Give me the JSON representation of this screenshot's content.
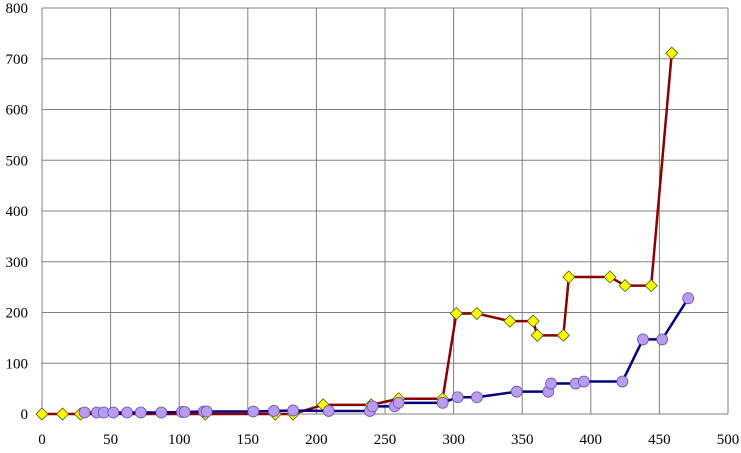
{
  "chart_data": {
    "type": "line",
    "title": "",
    "xlabel": "",
    "ylabel": "",
    "xlim": [
      0,
      500
    ],
    "ylim": [
      0,
      800
    ],
    "x_ticks": [
      0,
      50,
      100,
      150,
      200,
      250,
      300,
      350,
      400,
      450,
      500
    ],
    "y_ticks": [
      0,
      100,
      200,
      300,
      400,
      500,
      600,
      700,
      800
    ],
    "grid": true,
    "legend": "none",
    "series": [
      {
        "color": "#8B0000",
        "marker": "diamond",
        "marker_color": "#FFFF00",
        "points": [
          [
            0,
            0
          ],
          [
            15,
            0
          ],
          [
            28,
            0
          ],
          [
            119,
            0
          ],
          [
            170,
            0
          ],
          [
            183,
            0
          ],
          [
            205,
            18
          ],
          [
            240,
            18
          ],
          [
            260,
            30
          ],
          [
            292,
            30
          ],
          [
            302,
            198
          ],
          [
            317,
            198
          ],
          [
            341,
            183
          ],
          [
            358,
            183
          ],
          [
            361,
            155
          ],
          [
            380,
            155
          ],
          [
            384,
            270
          ],
          [
            414,
            270
          ],
          [
            425,
            253
          ],
          [
            444,
            253
          ],
          [
            459,
            711
          ]
        ]
      },
      {
        "color": "#000080",
        "marker": "circle",
        "marker_color": "#B89CF0",
        "points": [
          [
            31,
            3
          ],
          [
            40,
            3
          ],
          [
            45,
            3
          ],
          [
            52,
            3
          ],
          [
            62,
            3
          ],
          [
            72,
            3
          ],
          [
            87,
            3
          ],
          [
            102,
            4
          ],
          [
            104,
            4
          ],
          [
            118,
            5
          ],
          [
            120,
            5
          ],
          [
            154,
            5
          ],
          [
            169,
            6
          ],
          [
            183,
            7
          ],
          [
            209,
            6
          ],
          [
            239,
            6
          ],
          [
            241,
            15
          ],
          [
            257,
            15
          ],
          [
            260,
            22
          ],
          [
            292,
            22
          ],
          [
            303,
            33
          ],
          [
            317,
            33
          ],
          [
            346,
            44
          ],
          [
            369,
            44
          ],
          [
            371,
            60
          ],
          [
            389,
            60
          ],
          [
            395,
            64
          ],
          [
            423,
            64
          ],
          [
            438,
            147
          ],
          [
            452,
            147
          ],
          [
            471,
            228
          ]
        ]
      }
    ]
  }
}
